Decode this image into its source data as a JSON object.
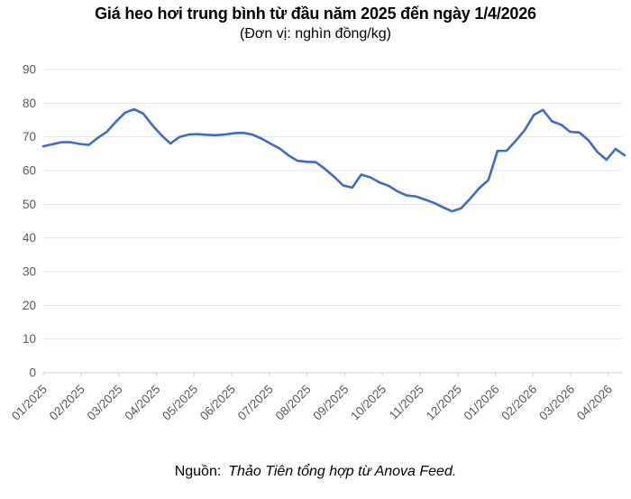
{
  "header": {
    "title": "Giá heo hơi trung bình từ đầu năm 2025 đến ngày 1/4/2026",
    "subtitle": "(Đơn vị: nghìn đồng/kg)"
  },
  "footer": {
    "label": "Nguồn:",
    "source": "Thảo Tiên tổng hợp từ Anova Feed."
  },
  "chart_data": {
    "type": "line",
    "title": "Giá heo hơi trung bình từ đầu năm 2025 đến ngày 1/4/2026",
    "unit_label": "(Đơn vị: nghìn đồng/kg)",
    "xlabel": "",
    "ylabel": "",
    "ylim": [
      0,
      90
    ],
    "y_ticks": [
      0,
      10,
      20,
      30,
      40,
      50,
      60,
      70,
      80,
      90
    ],
    "x_tick_labels": [
      "01/2025",
      "02/2025",
      "03/2025",
      "04/2025",
      "05/2025",
      "06/2025",
      "07/2025",
      "08/2025",
      "09/2025",
      "10/2025",
      "11/2025",
      "12/2025",
      "01/2026",
      "02/2026",
      "03/2026",
      "04/2026"
    ],
    "grid": "horizontal-only",
    "legend": "none",
    "sampling": "weekly samples from 01/2025 to 01/04/2026",
    "colors": {
      "line": "#3E6BC8",
      "grid": "#E3E3E3",
      "axis": "#CFCFCF",
      "tick_label": "#595959"
    },
    "series": [
      {
        "name": "Giá heo hơi trung bình (nghìn đồng/kg)",
        "values": [
          67.2,
          67.8,
          68.4,
          68.4,
          67.9,
          67.6,
          69.7,
          71.5,
          74.5,
          77.2,
          78.2,
          76.9,
          73.5,
          70.5,
          68.0,
          70.0,
          70.7,
          70.8,
          70.6,
          70.5,
          70.7,
          71.1,
          71.2,
          70.7,
          69.5,
          68.0,
          66.6,
          64.5,
          62.9,
          62.6,
          62.5,
          60.5,
          58.2,
          55.6,
          54.9,
          58.8,
          58.0,
          56.5,
          55.5,
          53.8,
          52.6,
          52.3,
          51.4,
          50.4,
          49.1,
          47.9,
          48.8,
          51.7,
          54.8,
          57.2,
          65.8,
          65.9,
          68.8,
          72.0,
          76.5,
          78.0,
          74.6,
          73.6,
          71.5,
          71.3,
          69.0,
          65.5,
          63.2,
          66.4,
          64.5
        ]
      }
    ]
  }
}
